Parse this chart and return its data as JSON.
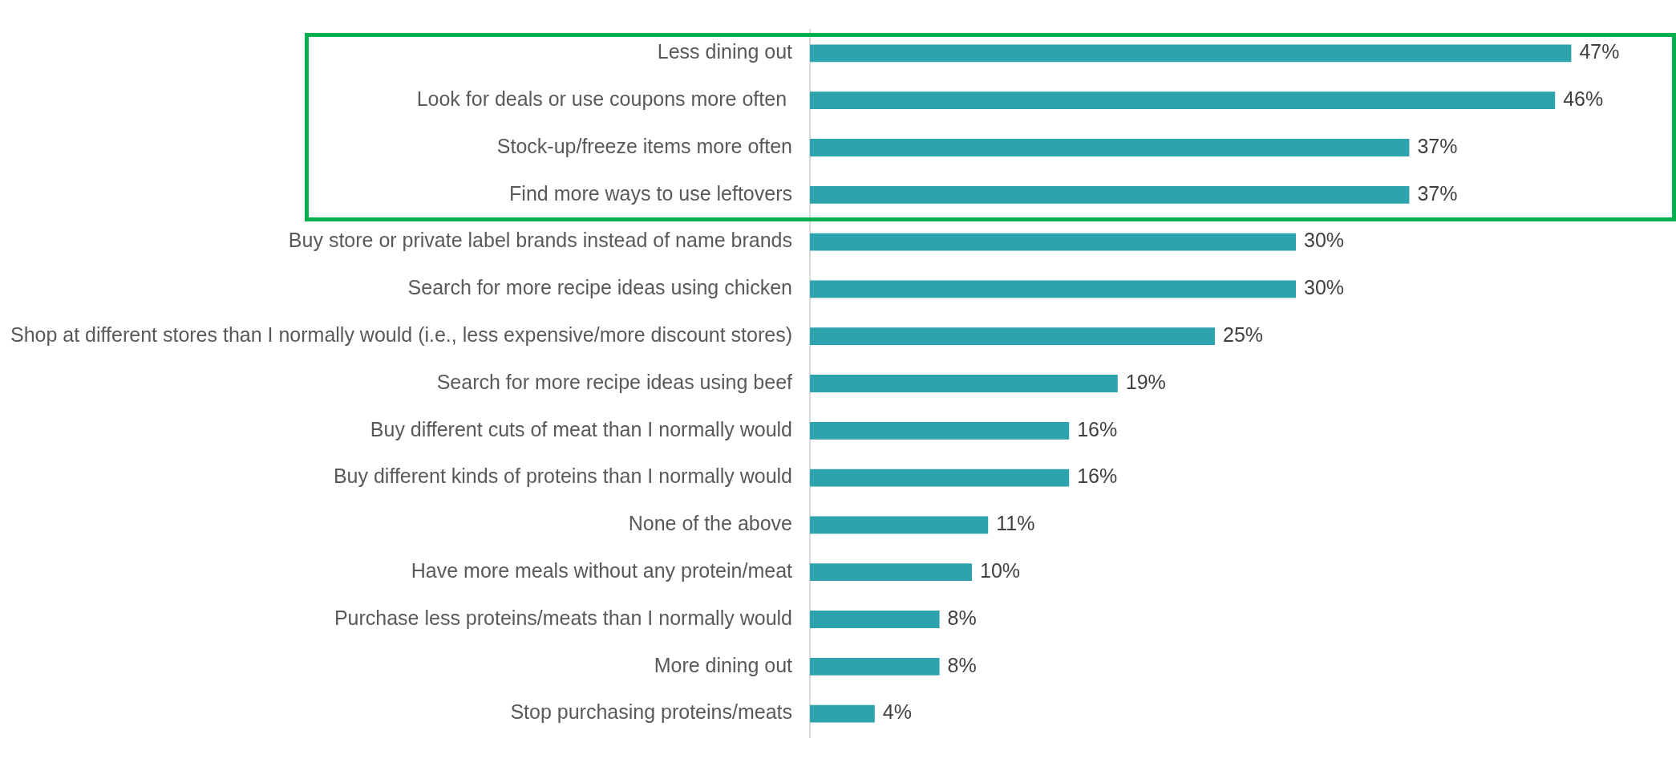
{
  "chart_data": {
    "type": "bar",
    "orientation": "horizontal",
    "categories": [
      "Less dining out",
      "Look for deals or use coupons more often ",
      "Stock-up/freeze items more often",
      "Find more ways to use leftovers",
      "Buy store or private label brands instead of name brands",
      "Search for more recipe ideas using chicken",
      "Shop at different stores than I normally would (i.e., less expensive/more discount stores)",
      "Search for more recipe ideas using beef",
      "Buy different cuts of meat than I normally would",
      "Buy different kinds of proteins than I normally would",
      "None of the above",
      "Have more meals without any protein/meat",
      "Purchase less proteins/meats than I normally would",
      "More dining out",
      "Stop purchasing proteins/meats"
    ],
    "values": [
      47,
      46,
      37,
      37,
      30,
      30,
      25,
      19,
      16,
      16,
      11,
      10,
      8,
      8,
      4
    ],
    "value_labels": [
      "47%",
      "46%",
      "37%",
      "37%",
      "30%",
      "30%",
      "25%",
      "19%",
      "16%",
      "16%",
      "11%",
      "10%",
      "8%",
      "8%",
      "4%"
    ],
    "color": "#2ca3ad"
  }
}
